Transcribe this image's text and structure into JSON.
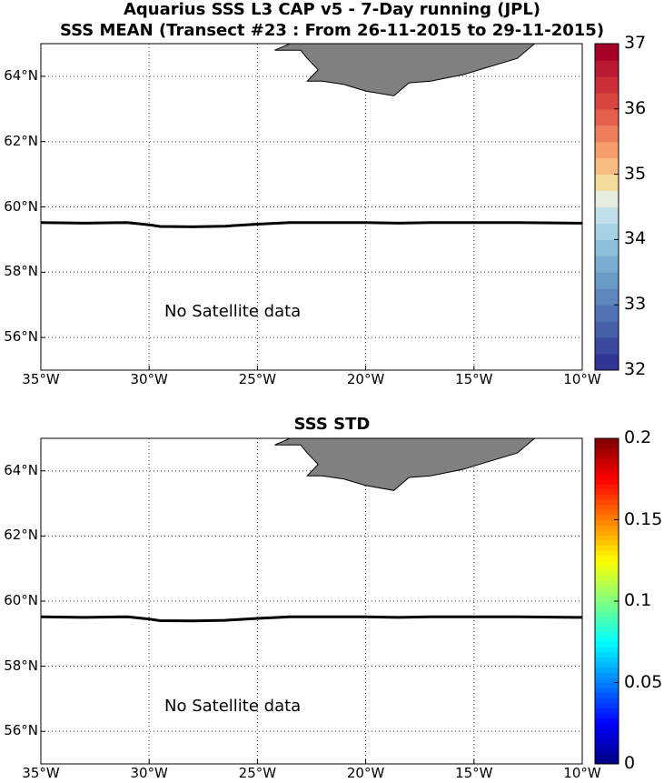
{
  "title_line1": "Aquarius SSS L3 CAP v5 - 7-Day running (JPL)",
  "title_line2": "SSS MEAN (Transect #23 : From 26-11-2015 to 29-11-2015)",
  "panel2_title": "SSS STD",
  "no_data_text": "No Satellite data",
  "map": {
    "lon_range": [
      -35,
      -10
    ],
    "lat_range": [
      55,
      65
    ],
    "lon_ticks": [
      -35,
      -30,
      -25,
      -20,
      -15,
      -10
    ],
    "lon_tick_labels": [
      "35°W",
      "30°W",
      "25°W",
      "20°W",
      "15°W",
      "10°W"
    ],
    "lat_ticks": [
      56,
      58,
      60,
      62,
      64
    ],
    "lat_tick_labels": [
      "56°N",
      "58°N",
      "60°N",
      "62°N",
      "64°N"
    ],
    "grid": "dotted",
    "land_color": "#808080",
    "transect_lat": 59.5
  },
  "colorbar_mean": {
    "min": 32,
    "max": 37,
    "tick_labels": [
      "32",
      "33",
      "34",
      "35",
      "36",
      "37"
    ],
    "colors": [
      "#313695",
      "#3b4a9f",
      "#465fa9",
      "#5273b3",
      "#5d87bd",
      "#6a9bc6",
      "#7aadd1",
      "#8ebfdb",
      "#a6d2e5",
      "#c2e0ea",
      "#e6eee0",
      "#f6dc9c",
      "#f9bc80",
      "#f59e6c",
      "#ef7f5c",
      "#e4604d",
      "#d84642",
      "#c92d38",
      "#b71a31",
      "#a50026"
    ]
  },
  "colorbar_std": {
    "min": 0,
    "max": 0.2,
    "tick_labels": [
      "0",
      "0.05",
      "0.1",
      "0.15",
      "0.2"
    ],
    "colormap": "jet"
  }
}
